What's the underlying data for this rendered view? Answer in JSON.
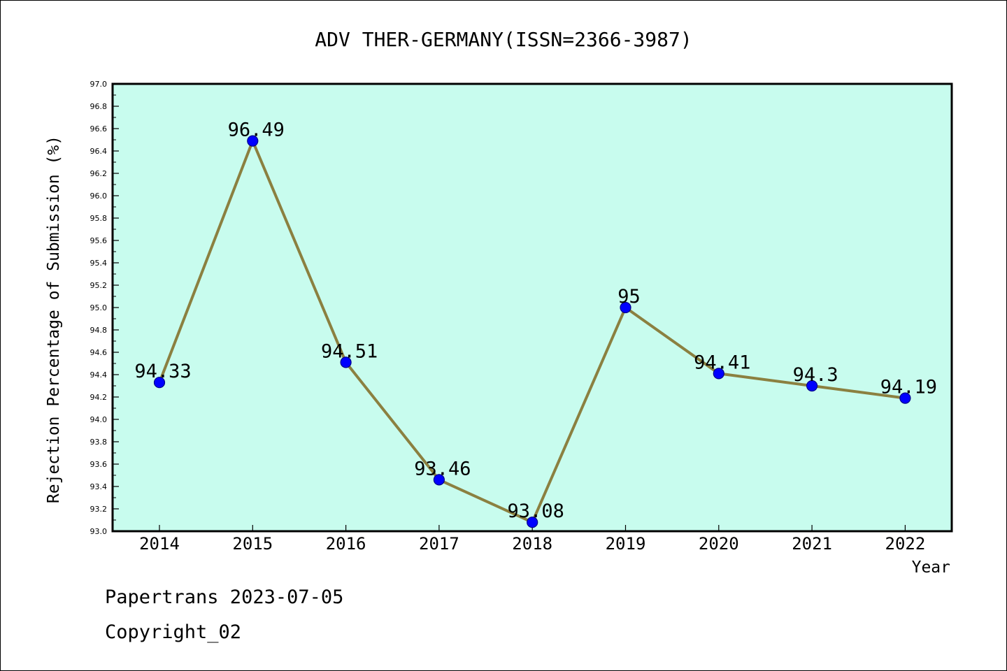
{
  "chart_data": {
    "type": "line",
    "title": "ADV THER-GERMANY(ISSN=2366-3987)",
    "xlabel": "Year",
    "ylabel": "Rejection Percentage of Submission (%)",
    "categories": [
      "2014",
      "2015",
      "2016",
      "2017",
      "2018",
      "2019",
      "2020",
      "2021",
      "2022"
    ],
    "series": [
      {
        "values": [
          94.33,
          96.49,
          94.51,
          93.46,
          93.08,
          95,
          94.41,
          94.3,
          94.19
        ],
        "labels": [
          "94.33",
          "96.49",
          "94.51",
          "93.46",
          "93.08",
          "95",
          "94.41",
          "94.3",
          "94.19"
        ]
      }
    ],
    "ylim": [
      93.0,
      97.0
    ],
    "ytick_step": 0.2,
    "ytick_labels": [
      "93.0",
      "93.2",
      "93.4",
      "93.6",
      "93.8",
      "94.0",
      "94.2",
      "94.4",
      "94.6",
      "94.8",
      "95.0",
      "95.2",
      "95.4",
      "95.6",
      "95.8",
      "96.0",
      "96.2",
      "96.4",
      "96.6",
      "96.8",
      "97.0"
    ],
    "grid": false,
    "legend": "none",
    "colors": {
      "plot_background": "#c8fcee",
      "line": "#8b8040",
      "marker": "#0000ff",
      "marker_edge": "#00008b"
    }
  },
  "footer": {
    "line1": "Papertrans 2023-07-05",
    "line2": "Copyright_02"
  }
}
